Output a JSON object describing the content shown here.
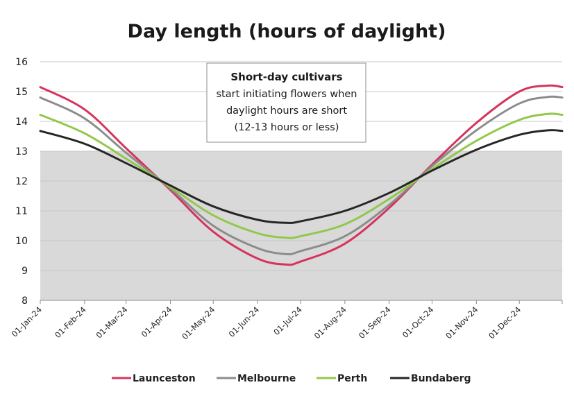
{
  "chart_data": {
    "type": "line",
    "title": "Day length (hours of daylight)",
    "xlabel": "",
    "ylabel": "",
    "ylim": [
      8,
      16
    ],
    "yticks": [
      8,
      9,
      10,
      11,
      12,
      13,
      14,
      15,
      16
    ],
    "x_range": [
      "01-Jan-24",
      "31-Dec-24"
    ],
    "xticks": [
      "01-Jan-24",
      "01-Feb-24",
      "01-Mar-24",
      "01-Apr-24",
      "01-May-24",
      "01-Jun-24",
      "01-Jul-24",
      "01-Aug-24",
      "01-Sep-24",
      "01-Oct-24",
      "01-Nov-24",
      "01-Dec-24"
    ],
    "grid": true,
    "shaded_band": {
      "y_from": 8,
      "y_to": 13,
      "color": "#d9d9d9"
    },
    "legend_position": "bottom",
    "annotation": {
      "title": "Short-day cultivars",
      "lines": [
        "start initiating flowers when",
        "daylight hours are short",
        "(12-13 hours or less)"
      ]
    },
    "series": [
      {
        "name": "Launceston",
        "color": "#d6335c",
        "points": [
          [
            "01-Jan-24",
            15.15
          ],
          [
            "01-Feb-24",
            14.4
          ],
          [
            "01-Mar-24",
            13.1
          ],
          [
            "01-Apr-24",
            11.7
          ],
          [
            "01-May-24",
            10.3
          ],
          [
            "01-Jun-24",
            9.4
          ],
          [
            "21-Jun-24",
            9.2
          ],
          [
            "01-Jul-24",
            9.3
          ],
          [
            "01-Aug-24",
            9.9
          ],
          [
            "01-Sep-24",
            11.1
          ],
          [
            "01-Oct-24",
            12.55
          ],
          [
            "01-Nov-24",
            13.95
          ],
          [
            "01-Dec-24",
            15.0
          ],
          [
            "21-Dec-24",
            15.2
          ],
          [
            "31-Dec-24",
            15.15
          ]
        ]
      },
      {
        "name": "Melbourne",
        "color": "#8c8c8c",
        "points": [
          [
            "01-Jan-24",
            14.8
          ],
          [
            "01-Feb-24",
            14.1
          ],
          [
            "01-Mar-24",
            12.95
          ],
          [
            "01-Apr-24",
            11.75
          ],
          [
            "01-May-24",
            10.5
          ],
          [
            "01-Jun-24",
            9.75
          ],
          [
            "21-Jun-24",
            9.55
          ],
          [
            "01-Jul-24",
            9.65
          ],
          [
            "01-Aug-24",
            10.15
          ],
          [
            "01-Sep-24",
            11.2
          ],
          [
            "01-Oct-24",
            12.5
          ],
          [
            "01-Nov-24",
            13.7
          ],
          [
            "01-Dec-24",
            14.6
          ],
          [
            "21-Dec-24",
            14.82
          ],
          [
            "31-Dec-24",
            14.8
          ]
        ]
      },
      {
        "name": "Perth",
        "color": "#92c84a",
        "points": [
          [
            "01-Jan-24",
            14.22
          ],
          [
            "01-Feb-24",
            13.6
          ],
          [
            "01-Mar-24",
            12.75
          ],
          [
            "01-Apr-24",
            11.8
          ],
          [
            "01-May-24",
            10.85
          ],
          [
            "01-Jun-24",
            10.25
          ],
          [
            "21-Jun-24",
            10.1
          ],
          [
            "01-Jul-24",
            10.15
          ],
          [
            "01-Aug-24",
            10.55
          ],
          [
            "01-Sep-24",
            11.4
          ],
          [
            "01-Oct-24",
            12.4
          ],
          [
            "01-Nov-24",
            13.35
          ],
          [
            "01-Dec-24",
            14.05
          ],
          [
            "21-Dec-24",
            14.25
          ],
          [
            "31-Dec-24",
            14.22
          ]
        ]
      },
      {
        "name": "Bundaberg",
        "color": "#262626",
        "points": [
          [
            "01-Jan-24",
            13.68
          ],
          [
            "01-Feb-24",
            13.25
          ],
          [
            "01-Mar-24",
            12.6
          ],
          [
            "01-Apr-24",
            11.85
          ],
          [
            "01-May-24",
            11.15
          ],
          [
            "01-Jun-24",
            10.7
          ],
          [
            "21-Jun-24",
            10.6
          ],
          [
            "01-Jul-24",
            10.65
          ],
          [
            "01-Aug-24",
            11.0
          ],
          [
            "01-Sep-24",
            11.6
          ],
          [
            "01-Oct-24",
            12.35
          ],
          [
            "01-Nov-24",
            13.05
          ],
          [
            "01-Dec-24",
            13.55
          ],
          [
            "21-Dec-24",
            13.7
          ],
          [
            "31-Dec-24",
            13.68
          ]
        ]
      }
    ]
  }
}
